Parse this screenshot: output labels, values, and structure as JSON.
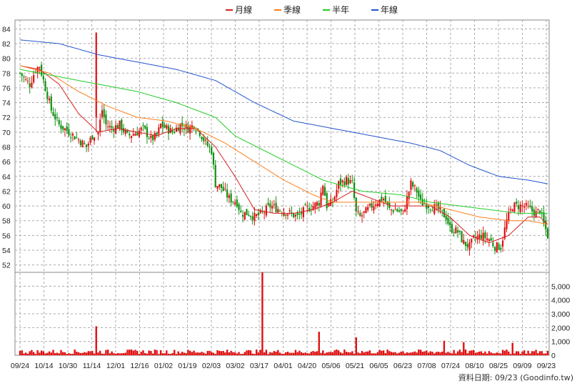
{
  "legend": [
    {
      "label": "月線",
      "color": "#d42020"
    },
    {
      "label": "季線",
      "color": "#ff7f1e"
    },
    {
      "label": "半年",
      "color": "#22cc22"
    },
    {
      "label": "年線",
      "color": "#2255cc"
    }
  ],
  "footer": "資料日期: 09/23 (Goodinfo.tw)",
  "chart_data": {
    "type": "candlestick",
    "title": "",
    "xlabel": "",
    "ylabel": "",
    "grid": true,
    "legend_position": "top-center",
    "x_ticks": [
      "09/24",
      "10/14",
      "10/30",
      "11/14",
      "12/01",
      "12/16",
      "01/02",
      "01/19",
      "02/03",
      "03/02",
      "03/17",
      "04/01",
      "04/20",
      "05/06",
      "05/21",
      "06/05",
      "06/23",
      "07/08",
      "07/24",
      "08/10",
      "08/25",
      "09/09",
      "09/23"
    ],
    "price_axis": {
      "ticks": [
        "52",
        "54",
        "56",
        "58",
        "60",
        "62",
        "64",
        "66",
        "68",
        "70",
        "72",
        "74",
        "76",
        "78",
        "80",
        "82",
        "84"
      ],
      "ylim": [
        51,
        85
      ],
      "side": "left"
    },
    "volume_axis": {
      "ticks": [
        "0",
        "1,000",
        "2,000",
        "3,000",
        "4,000",
        "5,000"
      ],
      "ylim": [
        0,
        6000
      ],
      "side": "right"
    },
    "close_anchors": [
      [
        0,
        78.0
      ],
      [
        3,
        77.0
      ],
      [
        5,
        76.5
      ],
      [
        8,
        78.5
      ],
      [
        10,
        79.0
      ],
      [
        13,
        76.0
      ],
      [
        16,
        73.0
      ],
      [
        20,
        71.0
      ],
      [
        25,
        70.0
      ],
      [
        30,
        69.0
      ],
      [
        34,
        68.0
      ],
      [
        37,
        69.5
      ],
      [
        40,
        70.0
      ],
      [
        42,
        73.0
      ],
      [
        44,
        71.0
      ],
      [
        47,
        70.5
      ],
      [
        51,
        71.0
      ],
      [
        55,
        69.5
      ],
      [
        60,
        70.0
      ],
      [
        63,
        70.5
      ],
      [
        67,
        69.0
      ],
      [
        70,
        69.5
      ],
      [
        72,
        71.0
      ],
      [
        75,
        70.5
      ],
      [
        78,
        70.0
      ],
      [
        82,
        71.0
      ],
      [
        86,
        70.5
      ],
      [
        89,
        71.0
      ],
      [
        92,
        70.0
      ],
      [
        95,
        68.5
      ],
      [
        98,
        67.5
      ],
      [
        100,
        63.0
      ],
      [
        103,
        62.5
      ],
      [
        107,
        61.0
      ],
      [
        111,
        60.5
      ],
      [
        113,
        59.0
      ],
      [
        117,
        59.0
      ],
      [
        120,
        58.5
      ],
      [
        124,
        59.0
      ],
      [
        128,
        60.0
      ],
      [
        133,
        59.5
      ],
      [
        138,
        59.0
      ],
      [
        142,
        58.5
      ],
      [
        146,
        59.5
      ],
      [
        150,
        60.0
      ],
      [
        153,
        60.5
      ],
      [
        155,
        63.0
      ],
      [
        157,
        60.0
      ],
      [
        160,
        60.5
      ],
      [
        163,
        63.0
      ],
      [
        167,
        63.5
      ],
      [
        170,
        63.0
      ],
      [
        172,
        59.0
      ],
      [
        174,
        58.5
      ],
      [
        178,
        59.5
      ],
      [
        182,
        60.5
      ],
      [
        186,
        61.0
      ],
      [
        189,
        59.5
      ],
      [
        192,
        59.5
      ],
      [
        196,
        59.0
      ],
      [
        200,
        63.0
      ],
      [
        203,
        62.0
      ],
      [
        205,
        60.5
      ],
      [
        210,
        60.0
      ],
      [
        214,
        59.5
      ],
      [
        218,
        58.5
      ],
      [
        220,
        57.0
      ],
      [
        224,
        56.5
      ],
      [
        227,
        55.0
      ],
      [
        230,
        54.5
      ],
      [
        232,
        55.5
      ],
      [
        236,
        56.0
      ],
      [
        240,
        55.5
      ],
      [
        243,
        54.5
      ],
      [
        246,
        54.5
      ],
      [
        249,
        58.0
      ],
      [
        252,
        60.0
      ],
      [
        255,
        60.0
      ],
      [
        258,
        60.0
      ],
      [
        261,
        59.5
      ],
      [
        264,
        59.0
      ],
      [
        266,
        59.5
      ],
      [
        268,
        57.5
      ],
      [
        270,
        56.0
      ]
    ],
    "spike_bar": {
      "index": 39,
      "open": 72.0,
      "close": 83.5,
      "high": 83.5,
      "low": 70.0
    },
    "moving_averages": [
      {
        "name": "月線",
        "color": "#d42020",
        "values": [
          [
            0,
            79.0
          ],
          [
            10,
            78.5
          ],
          [
            20,
            76.5
          ],
          [
            30,
            72.5
          ],
          [
            40,
            70.0
          ],
          [
            50,
            70.5
          ],
          [
            60,
            70.0
          ],
          [
            70,
            69.5
          ],
          [
            80,
            70.5
          ],
          [
            90,
            70.5
          ],
          [
            100,
            68.0
          ],
          [
            110,
            64.0
          ],
          [
            120,
            59.5
          ],
          [
            130,
            59.0
          ],
          [
            140,
            59.0
          ],
          [
            150,
            59.5
          ],
          [
            160,
            60.5
          ],
          [
            170,
            62.0
          ],
          [
            180,
            61.0
          ],
          [
            190,
            60.0
          ],
          [
            200,
            60.0
          ],
          [
            210,
            60.0
          ],
          [
            220,
            58.5
          ],
          [
            230,
            56.0
          ],
          [
            240,
            55.0
          ],
          [
            250,
            56.0
          ],
          [
            260,
            58.5
          ],
          [
            266,
            58.5
          ],
          [
            270,
            57.5
          ]
        ]
      },
      {
        "name": "季線",
        "color": "#ff7f1e",
        "values": [
          [
            0,
            79.0
          ],
          [
            15,
            78.0
          ],
          [
            30,
            75.5
          ],
          [
            45,
            73.5
          ],
          [
            60,
            72.0
          ],
          [
            75,
            71.5
          ],
          [
            90,
            70.5
          ],
          [
            105,
            68.5
          ],
          [
            120,
            66.0
          ],
          [
            135,
            63.5
          ],
          [
            150,
            61.5
          ],
          [
            160,
            60.5
          ],
          [
            175,
            60.5
          ],
          [
            190,
            60.5
          ],
          [
            205,
            60.5
          ],
          [
            220,
            59.5
          ],
          [
            235,
            58.5
          ],
          [
            250,
            58.0
          ],
          [
            260,
            58.0
          ],
          [
            270,
            57.5
          ]
        ]
      },
      {
        "name": "半年",
        "color": "#22cc22",
        "values": [
          [
            0,
            78.5
          ],
          [
            20,
            77.5
          ],
          [
            40,
            76.5
          ],
          [
            60,
            75.5
          ],
          [
            80,
            74.0
          ],
          [
            100,
            72.0
          ],
          [
            110,
            69.5
          ],
          [
            125,
            67.5
          ],
          [
            140,
            65.5
          ],
          [
            155,
            63.5
          ],
          [
            175,
            62.0
          ],
          [
            195,
            61.5
          ],
          [
            210,
            60.5
          ],
          [
            225,
            60.0
          ],
          [
            240,
            59.5
          ],
          [
            255,
            59.0
          ],
          [
            270,
            59.0
          ]
        ]
      },
      {
        "name": "年線",
        "color": "#2255cc",
        "values": [
          [
            0,
            82.5
          ],
          [
            20,
            82.0
          ],
          [
            40,
            80.5
          ],
          [
            60,
            79.5
          ],
          [
            80,
            78.5
          ],
          [
            100,
            77.0
          ],
          [
            120,
            74.0
          ],
          [
            140,
            71.5
          ],
          [
            160,
            70.5
          ],
          [
            180,
            69.5
          ],
          [
            200,
            68.5
          ],
          [
            215,
            67.5
          ],
          [
            230,
            65.5
          ],
          [
            245,
            64.0
          ],
          [
            260,
            63.5
          ],
          [
            270,
            63.0
          ]
        ]
      }
    ],
    "volume_spikes": [
      {
        "index": 39,
        "value": 2100
      },
      {
        "index": 124,
        "value": 6000
      },
      {
        "index": 153,
        "value": 1700
      },
      {
        "index": 172,
        "value": 1300
      },
      {
        "index": 217,
        "value": 1050
      },
      {
        "index": 227,
        "value": 950
      },
      {
        "index": 252,
        "value": 900
      }
    ],
    "volume_baseline": 300
  }
}
